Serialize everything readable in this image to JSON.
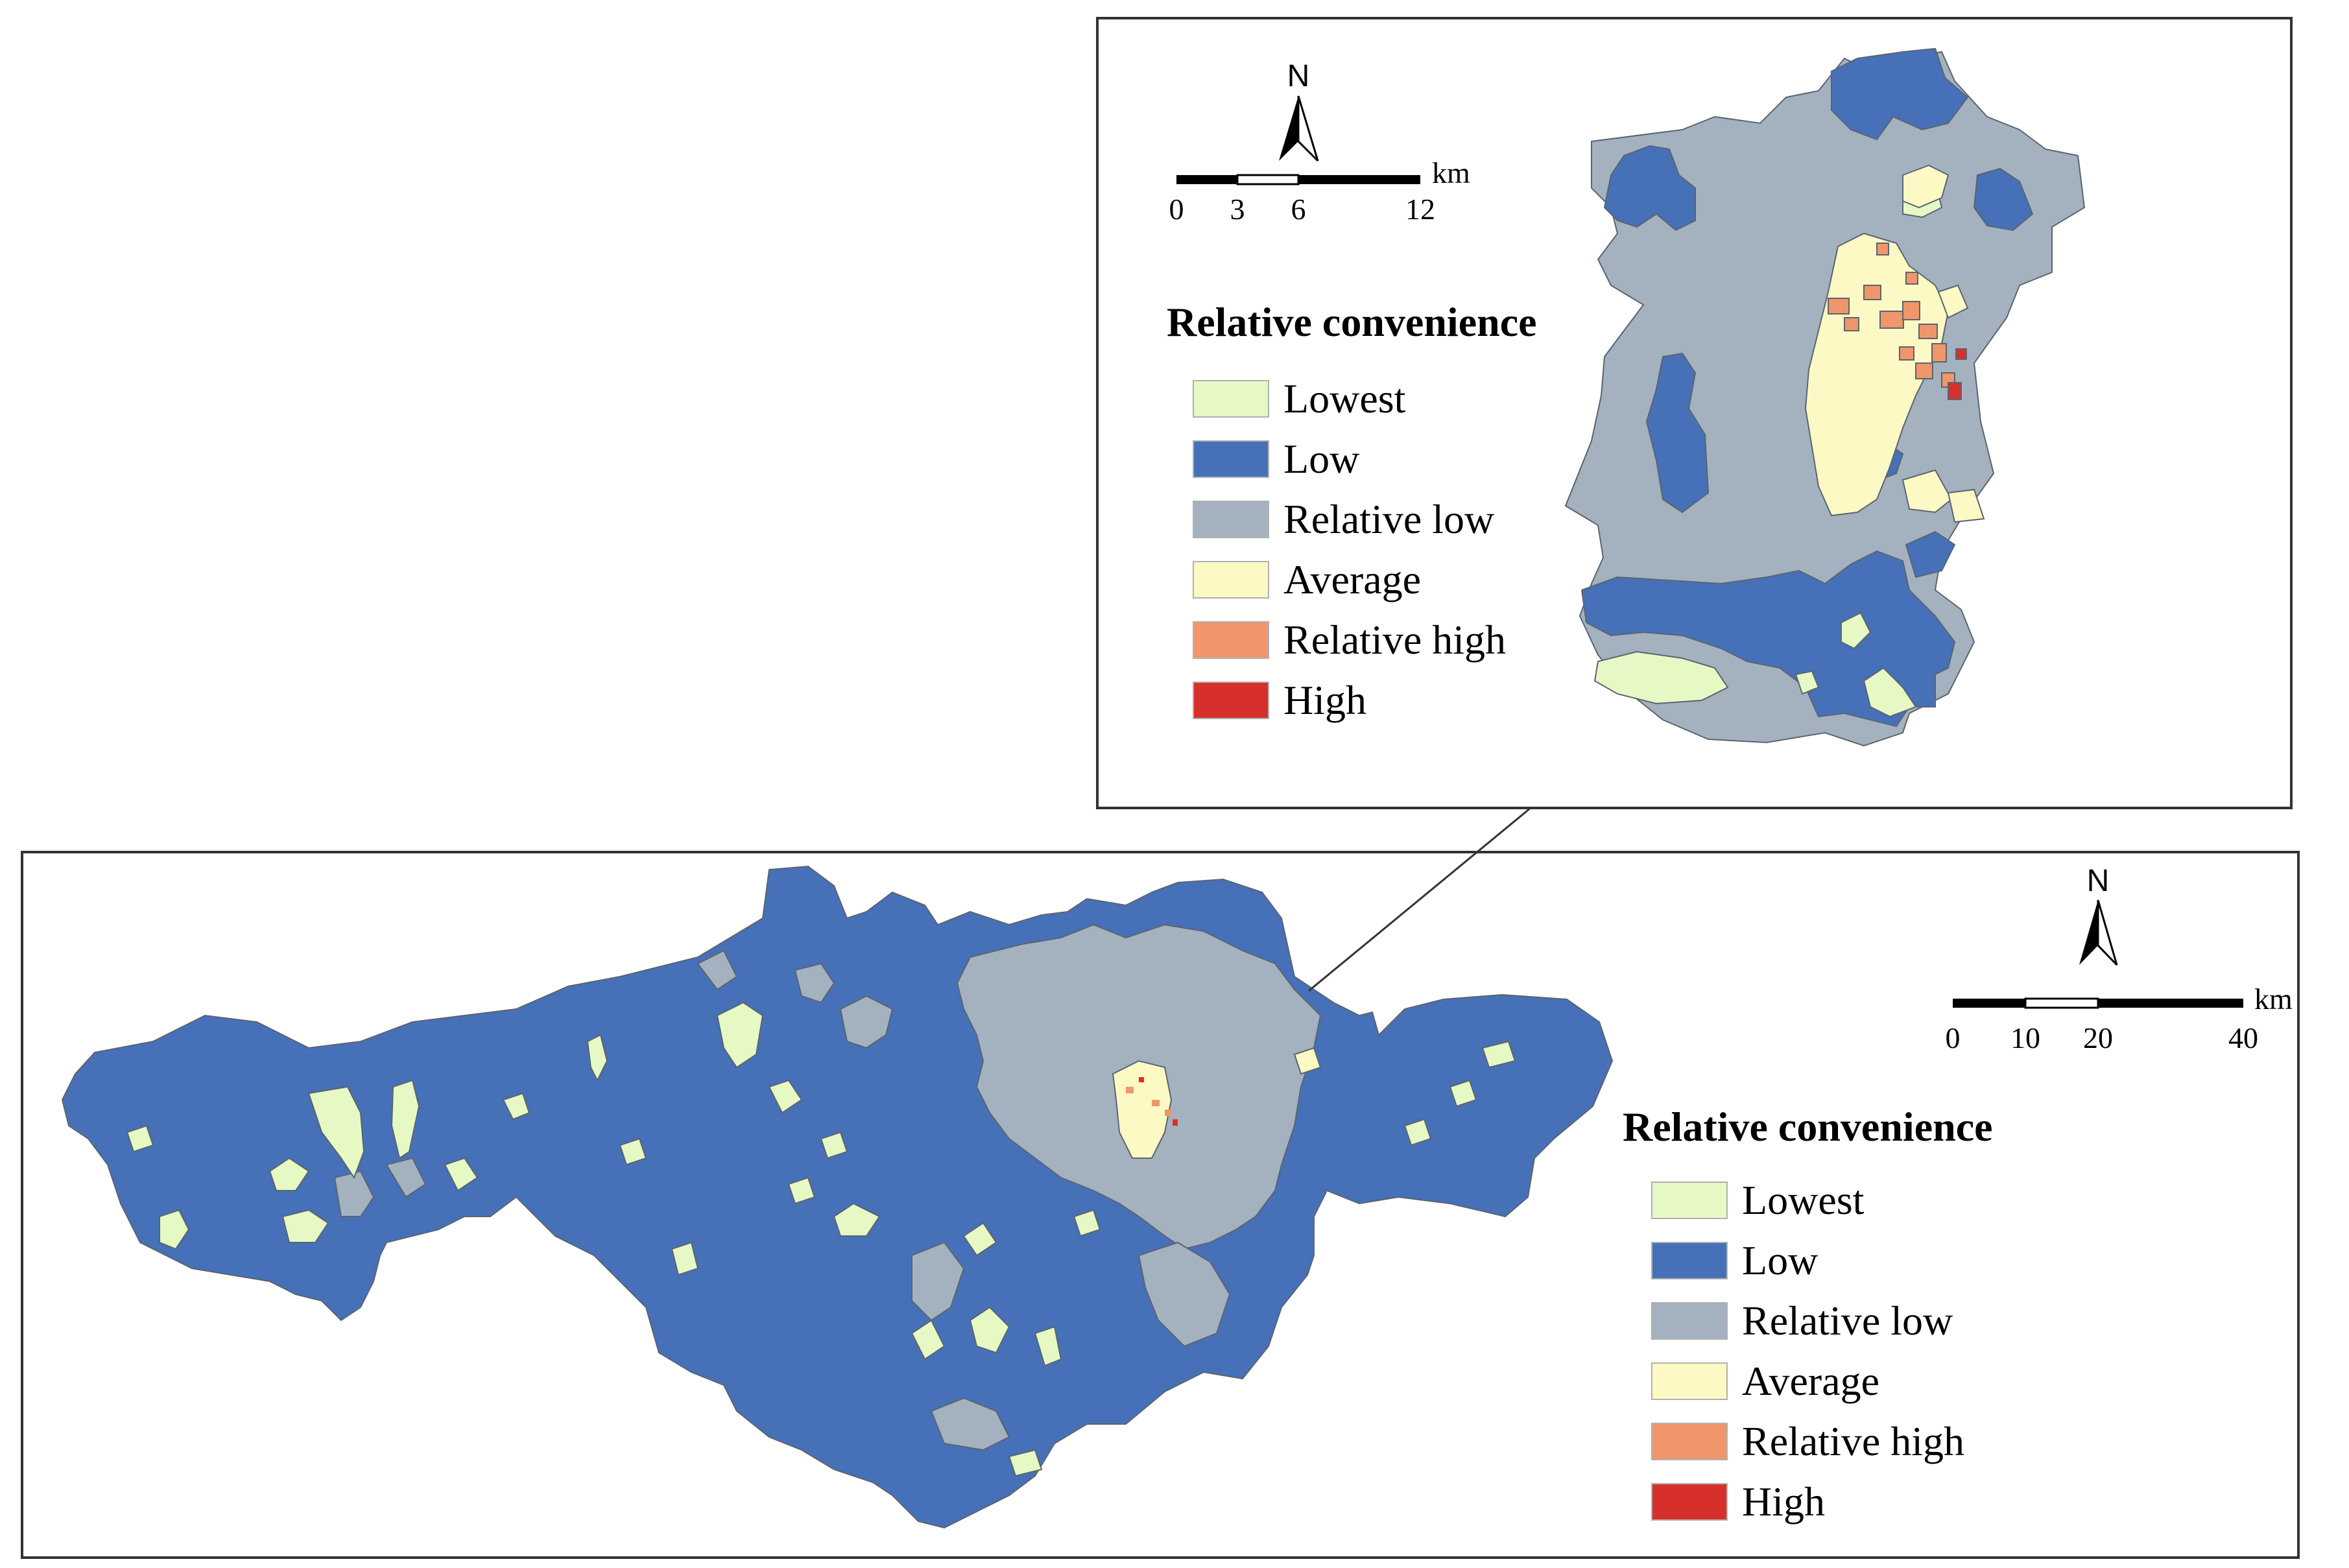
{
  "inset": {
    "legend": {
      "title": "Relative convenience",
      "items": [
        {
          "label": "Lowest",
          "color": "#e6f9c4"
        },
        {
          "label": "Low",
          "color": "#4671b8"
        },
        {
          "label": "Relative low",
          "color": "#a4b2c0"
        },
        {
          "label": "Average",
          "color": "#fcf9c4"
        },
        {
          "label": "Relative high",
          "color": "#f0966a"
        },
        {
          "label": "High",
          "color": "#d7302c"
        }
      ]
    },
    "north_label": "N",
    "scale": {
      "ticks": [
        "0",
        "3",
        "6",
        "12"
      ],
      "unit": "km"
    }
  },
  "main": {
    "legend": {
      "title": "Relative convenience",
      "items": [
        {
          "label": "Lowest",
          "color": "#e6f9c4"
        },
        {
          "label": "Low",
          "color": "#4671b8"
        },
        {
          "label": "Relative low",
          "color": "#a4b2c0"
        },
        {
          "label": "Average",
          "color": "#fcf9c4"
        },
        {
          "label": "Relative high",
          "color": "#f0966a"
        },
        {
          "label": "High",
          "color": "#d7302c"
        }
      ]
    },
    "north_label": "N",
    "scale": {
      "ticks": [
        "0",
        "10",
        "20",
        "40"
      ],
      "unit": "km"
    }
  },
  "colors": {
    "boundary": "#5a6470",
    "panel_border": "#333333",
    "leader_line": "#333333"
  }
}
